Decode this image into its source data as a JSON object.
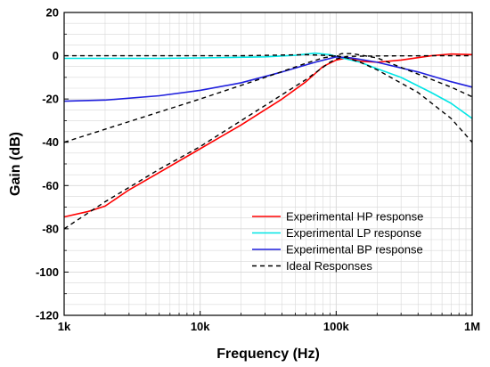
{
  "chart_data": {
    "type": "line",
    "title": "",
    "xlabel": "Frequency (Hz)",
    "ylabel": "Gain (dB)",
    "x_scale": "log",
    "xlim": [
      1000,
      1000000
    ],
    "ylim": [
      -120,
      20
    ],
    "x_ticks": [
      1000,
      10000,
      100000,
      1000000
    ],
    "x_tick_labels": [
      "1k",
      "10k",
      "100k",
      "1M"
    ],
    "y_ticks": [
      20,
      0,
      -20,
      -40,
      -60,
      -80,
      -100,
      -120
    ],
    "y_tick_labels": [
      "20",
      "0",
      "-20",
      "-40",
      "-60",
      "-80",
      "-100",
      "-120"
    ],
    "grid": true,
    "legend_position": "bottom-right",
    "series": [
      {
        "name": "Experimental HP response",
        "color": "#ff0000",
        "dash": "solid",
        "points": [
          [
            1000,
            -74.5
          ],
          [
            1500,
            -72
          ],
          [
            2000,
            -69.5
          ],
          [
            3000,
            -62
          ],
          [
            5000,
            -54
          ],
          [
            10000,
            -43
          ],
          [
            20000,
            -32
          ],
          [
            40000,
            -20
          ],
          [
            60000,
            -12
          ],
          [
            80000,
            -5
          ],
          [
            100000,
            -2
          ],
          [
            120000,
            -1
          ],
          [
            150000,
            -2.5
          ],
          [
            200000,
            -3
          ],
          [
            300000,
            -2
          ],
          [
            500000,
            0
          ],
          [
            700000,
            0.8
          ],
          [
            1000000,
            0.5
          ]
        ]
      },
      {
        "name": "Experimental LP response",
        "color": "#00e5e5",
        "dash": "solid",
        "points": [
          [
            1000,
            -1.2
          ],
          [
            5000,
            -1.2
          ],
          [
            10000,
            -1
          ],
          [
            30000,
            -0.5
          ],
          [
            50000,
            0.2
          ],
          [
            70000,
            1.2
          ],
          [
            90000,
            0.5
          ],
          [
            110000,
            -1
          ],
          [
            150000,
            -3
          ],
          [
            200000,
            -6
          ],
          [
            300000,
            -10
          ],
          [
            500000,
            -17
          ],
          [
            700000,
            -22
          ],
          [
            1000000,
            -29
          ]
        ]
      },
      {
        "name": "Experimental BP response",
        "color": "#1f1fdd",
        "dash": "solid",
        "points": [
          [
            1000,
            -21
          ],
          [
            2000,
            -20.5
          ],
          [
            5000,
            -18.5
          ],
          [
            10000,
            -16
          ],
          [
            20000,
            -12.5
          ],
          [
            40000,
            -7.5
          ],
          [
            70000,
            -3
          ],
          [
            100000,
            -0.5
          ],
          [
            130000,
            -1
          ],
          [
            200000,
            -3
          ],
          [
            400000,
            -7.5
          ],
          [
            700000,
            -12
          ],
          [
            1000000,
            -14.5
          ]
        ]
      },
      {
        "name": "Ideal Responses",
        "color": "#000000",
        "dash": "dashed",
        "points": [
          [
            1000,
            -80
          ],
          [
            2000,
            -67.5
          ],
          [
            5000,
            -52.5
          ],
          [
            10000,
            -42
          ],
          [
            30000,
            -23
          ],
          [
            60000,
            -11
          ],
          [
            90000,
            -3
          ],
          [
            100000,
            -1.5
          ],
          [
            120000,
            -0.3
          ],
          [
            200000,
            -0.1
          ],
          [
            500000,
            0
          ],
          [
            1000000,
            0
          ]
        ]
      },
      {
        "name": "",
        "color": "#000000",
        "dash": "dashed",
        "points": [
          [
            1000,
            -40
          ],
          [
            10000,
            -20
          ],
          [
            30000,
            -10
          ],
          [
            60000,
            -3.5
          ],
          [
            80000,
            -1
          ],
          [
            100000,
            0
          ],
          [
            110000,
            1
          ],
          [
            130000,
            1
          ],
          [
            200000,
            -1
          ],
          [
            400000,
            -8.5
          ],
          [
            700000,
            -14.5
          ],
          [
            1000000,
            -19
          ]
        ]
      },
      {
        "name": "",
        "color": "#000000",
        "dash": "dashed",
        "points": [
          [
            1000,
            0
          ],
          [
            20000,
            0
          ],
          [
            60000,
            0.5
          ],
          [
            100000,
            0
          ],
          [
            120000,
            -1
          ],
          [
            150000,
            -3
          ],
          [
            200000,
            -6.5
          ],
          [
            400000,
            -17
          ],
          [
            700000,
            -29
          ],
          [
            1000000,
            -40
          ]
        ]
      }
    ]
  }
}
